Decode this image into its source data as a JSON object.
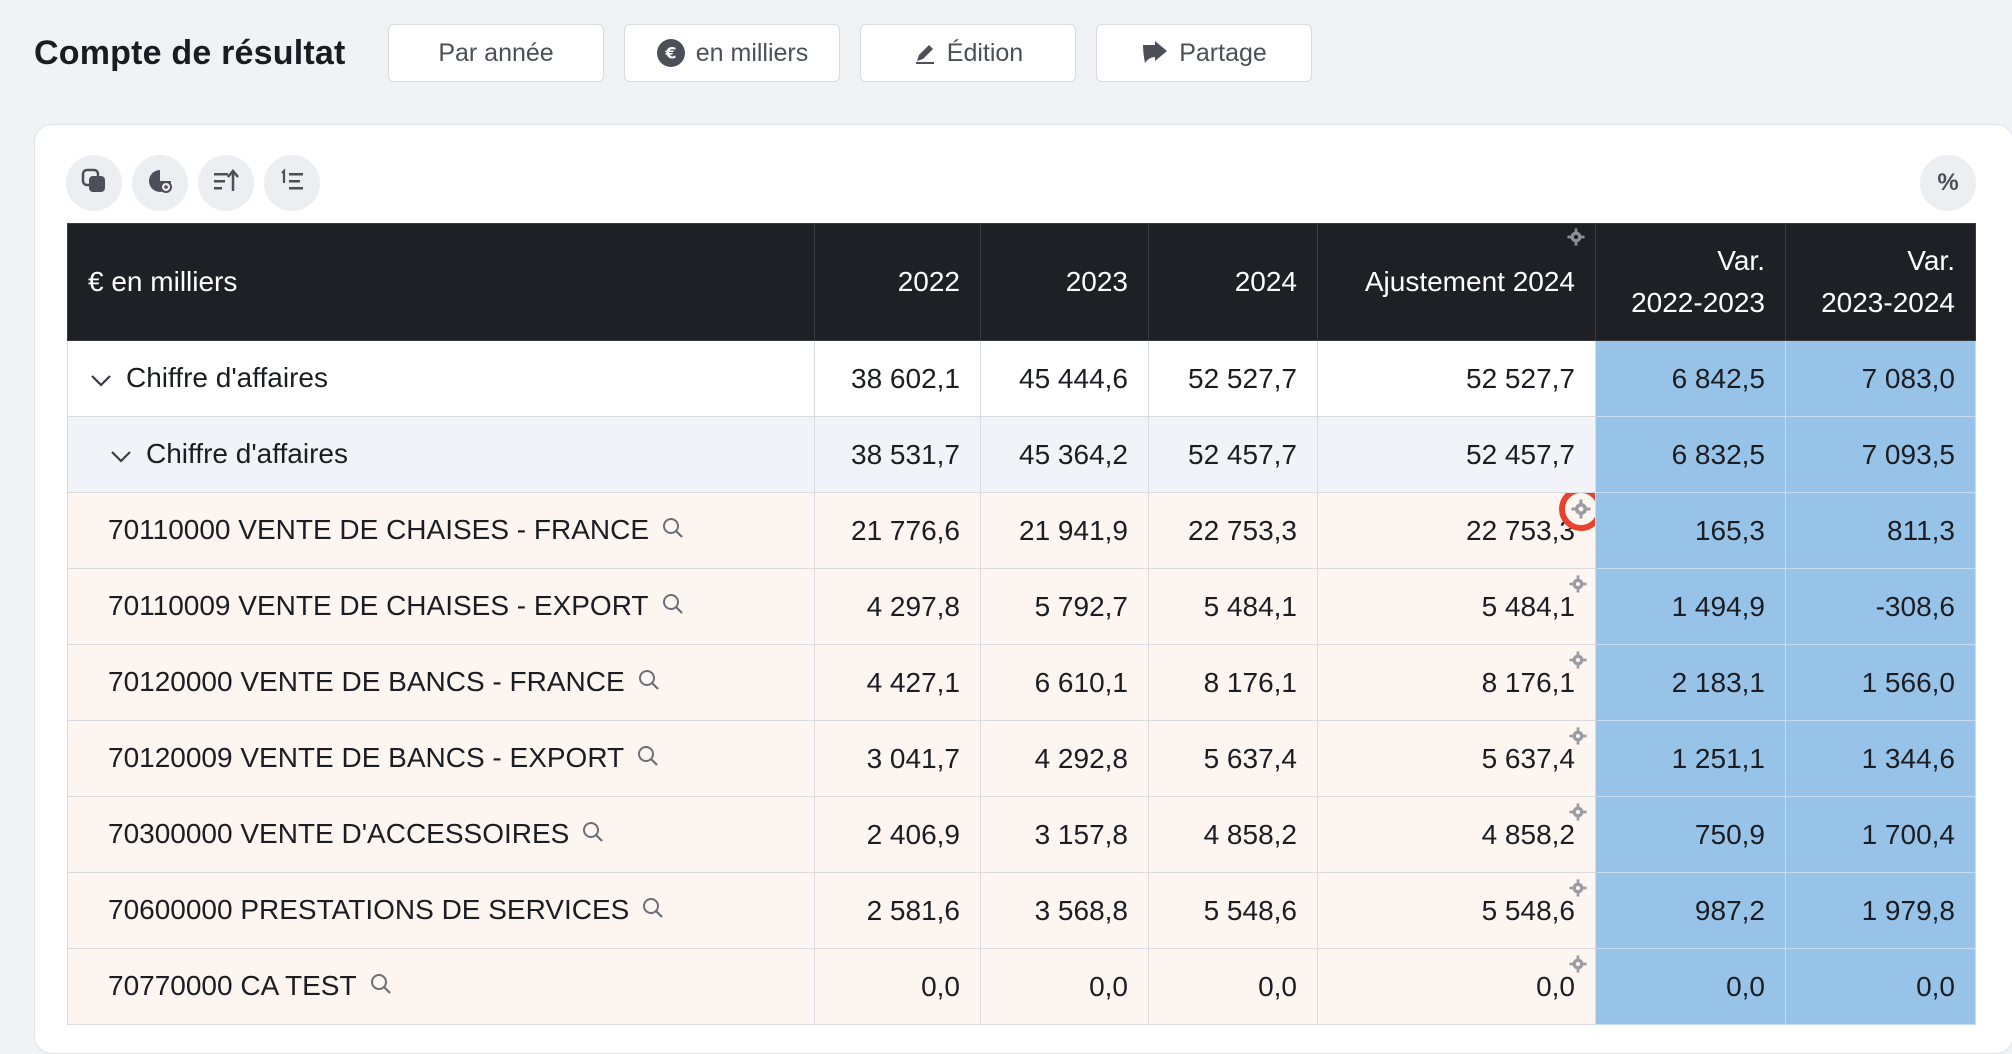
{
  "header": {
    "title": "Compte de résultat",
    "buttons": [
      {
        "label": "Par année",
        "icon": ""
      },
      {
        "label": "en milliers",
        "icon": "euro-circle-icon"
      },
      {
        "label": "Édition",
        "icon": "pen-icon"
      },
      {
        "label": "Partage",
        "icon": "share-arrow-icon"
      }
    ]
  },
  "toolbar": {
    "icons": [
      "copy-icon",
      "chart-settings-icon",
      "sort-ascending-icon",
      "numbered-list-icon"
    ],
    "percent_label": "%"
  },
  "table": {
    "columns": [
      "€ en milliers",
      "2022",
      "2023",
      "2024",
      "Ajustement 2024",
      "Var.\n2022-2023",
      "Var.\n2023-2024"
    ],
    "rows": [
      {
        "label": "Chiffre d'affaires",
        "level": 0,
        "values": [
          "38 602,1",
          "45 444,6",
          "52 527,7",
          "52 527,7",
          "6 842,5",
          "7 083,0"
        ]
      },
      {
        "label": "Chiffre d'affaires",
        "level": 1,
        "values": [
          "38 531,7",
          "45 364,2",
          "52 457,7",
          "52 457,7",
          "6 832,5",
          "7 093,5"
        ]
      },
      {
        "label": "70110000 VENTE DE CHAISES - FRANCE",
        "level": 2,
        "values": [
          "21 776,6",
          "21 941,9",
          "22 753,3",
          "22 753,3",
          "165,3",
          "811,3"
        ]
      },
      {
        "label": "70110009 VENTE DE CHAISES - EXPORT",
        "level": 2,
        "values": [
          "4 297,8",
          "5 792,7",
          "5 484,1",
          "5 484,1",
          "1 494,9",
          "-308,6"
        ]
      },
      {
        "label": "70120000 VENTE DE BANCS - FRANCE",
        "level": 2,
        "values": [
          "4 427,1",
          "6 610,1",
          "8 176,1",
          "8 176,1",
          "2 183,1",
          "1 566,0"
        ]
      },
      {
        "label": "70120009 VENTE DE BANCS - EXPORT",
        "level": 2,
        "values": [
          "3 041,7",
          "4 292,8",
          "5 637,4",
          "5 637,4",
          "1 251,1",
          "1 344,6"
        ]
      },
      {
        "label": "70300000 VENTE D'ACCESSOIRES",
        "level": 2,
        "values": [
          "2 406,9",
          "3 157,8",
          "4 858,2",
          "4 858,2",
          "750,9",
          "1 700,4"
        ]
      },
      {
        "label": "70600000 PRESTATIONS DE SERVICES",
        "level": 2,
        "values": [
          "2 581,6",
          "3 568,8",
          "5 548,6",
          "5 548,6",
          "987,2",
          "1 979,8"
        ]
      },
      {
        "label": "70770000 CA TEST",
        "level": 2,
        "values": [
          "0,0",
          "0,0",
          "0,0",
          "0,0",
          "0,0",
          "0,0"
        ]
      }
    ]
  },
  "colors": {
    "header_bg": "#1f2025",
    "variance_bg": "#98c3e8",
    "account_row_bg": "#fdf5f0",
    "subtotal_row_bg": "#f2f3f8",
    "highlight_ring": "#e8432e"
  }
}
